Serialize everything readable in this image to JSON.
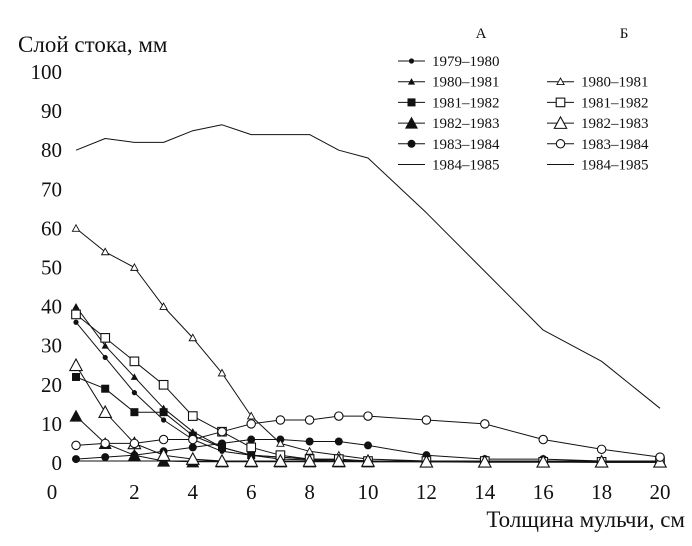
{
  "chart_data": {
    "type": "line",
    "title": "",
    "ylabel": "Слой стока, мм",
    "xlabel": "Толщина мульчи, см",
    "xlim": [
      0,
      20
    ],
    "ylim": [
      0,
      100
    ],
    "x_ticks": [
      0,
      2,
      4,
      6,
      8,
      10,
      12,
      14,
      16,
      18,
      20
    ],
    "y_ticks": [
      0,
      10,
      20,
      30,
      40,
      50,
      60,
      70,
      80,
      90,
      100
    ],
    "grid": false,
    "legend": {
      "placement": "top-right",
      "groups": [
        {
          "header": "А",
          "entries": [
            {
              "label": "1979–1980",
              "marker": "small-dot"
            },
            {
              "label": "1980–1981",
              "marker": "triangle-filled"
            },
            {
              "label": "1981–1982",
              "marker": "square-filled"
            },
            {
              "label": "1982–1983",
              "marker": "triangle-filled-large"
            },
            {
              "label": "1983–1984",
              "marker": "circle-filled"
            },
            {
              "label": "1984–1985",
              "marker": "none"
            }
          ]
        },
        {
          "header": "Б",
          "entries": [
            {
              "label": "1980–1981",
              "marker": "triangle-open"
            },
            {
              "label": "1981–1982",
              "marker": "square-open"
            },
            {
              "label": "1982–1983",
              "marker": "triangle-open-large"
            },
            {
              "label": "1983–1984",
              "marker": "circle-open"
            },
            {
              "label": "1984–1985",
              "marker": "none"
            }
          ]
        }
      ]
    },
    "series": [
      {
        "group": "А",
        "name": "1979–1980",
        "marker": "small-dot",
        "x": [
          0,
          1,
          2,
          3,
          4,
          5,
          6,
          7,
          8,
          9,
          10,
          12,
          14,
          16,
          18,
          20
        ],
        "y": [
          36,
          27,
          18,
          11,
          6,
          3,
          2,
          1.5,
          1,
          0.8,
          0.5,
          0.5,
          0.3,
          0.3,
          0.2,
          0.2
        ]
      },
      {
        "group": "А",
        "name": "1980–1981",
        "marker": "triangle-filled",
        "x": [
          0,
          1,
          2,
          3,
          4,
          5,
          6,
          7,
          8,
          9,
          10,
          12,
          14,
          16,
          18,
          20
        ],
        "y": [
          40,
          30,
          22,
          14,
          8,
          4,
          2,
          1.5,
          1,
          0.8,
          0.5,
          0.5,
          0.3,
          0.3,
          0.2,
          0.2
        ]
      },
      {
        "group": "А",
        "name": "1981–1982",
        "marker": "square-filled",
        "x": [
          0,
          1,
          2,
          3,
          4,
          5,
          6,
          7,
          8,
          9,
          10,
          12,
          14,
          16,
          18,
          20
        ],
        "y": [
          22,
          19,
          13,
          13,
          7,
          4,
          2,
          1,
          0.8,
          0.5,
          0.3,
          0.3,
          0.2,
          0.2,
          0.2,
          0.2
        ]
      },
      {
        "group": "А",
        "name": "1982–1983",
        "marker": "triangle-filled-large",
        "x": [
          0,
          1,
          2,
          3,
          4,
          5,
          6,
          7,
          8,
          9,
          10,
          12,
          14,
          16,
          18,
          20
        ],
        "y": [
          12,
          5,
          2,
          0.5,
          0.3,
          0.3,
          0.3,
          0.3,
          0.3,
          0.3,
          0.3,
          0.3,
          0.3,
          0.3,
          0.3,
          0.3
        ]
      },
      {
        "group": "А",
        "name": "1983–1984",
        "marker": "circle-filled",
        "x": [
          0,
          1,
          2,
          3,
          4,
          5,
          6,
          7,
          8,
          9,
          10,
          12,
          14,
          16,
          18,
          20
        ],
        "y": [
          1,
          1.5,
          2,
          3,
          4,
          5,
          6,
          6,
          5.5,
          5.5,
          4.5,
          2,
          1,
          1,
          0.5,
          0.5
        ]
      },
      {
        "group": "А",
        "name": "1984–1985",
        "marker": "none",
        "x": [
          0,
          2,
          4,
          6,
          8,
          10,
          12,
          14,
          16,
          18,
          20
        ],
        "y": [
          0.5,
          0.5,
          0.5,
          0.5,
          0.5,
          0.5,
          0.5,
          0.5,
          0.5,
          0.5,
          0.5
        ]
      },
      {
        "group": "Б",
        "name": "1980–1981",
        "marker": "triangle-open",
        "x": [
          0,
          1,
          2,
          3,
          4,
          5,
          6,
          7,
          8,
          9,
          10,
          12,
          14,
          16,
          18,
          20
        ],
        "y": [
          60,
          54,
          50,
          40,
          32,
          23,
          12,
          5,
          3,
          2,
          1,
          0.5,
          0.5,
          0.5,
          0.3,
          0.3
        ]
      },
      {
        "group": "Б",
        "name": "1981–1982",
        "marker": "square-open",
        "x": [
          0,
          1,
          2,
          3,
          4,
          5,
          6,
          7,
          8,
          9,
          10,
          12,
          14,
          16,
          18,
          20
        ],
        "y": [
          38,
          32,
          26,
          20,
          12,
          8,
          4,
          2,
          1,
          1,
          0.5,
          0.5,
          0.5,
          0.3,
          0.3,
          0.3
        ]
      },
      {
        "group": "Б",
        "name": "1982–1983",
        "marker": "triangle-open-large",
        "x": [
          0,
          1,
          2,
          3,
          4,
          5,
          6,
          7,
          8,
          9,
          10,
          12,
          14,
          16,
          18,
          20
        ],
        "y": [
          25,
          13,
          5,
          2,
          1,
          0.5,
          0.5,
          0.5,
          0.5,
          0.5,
          0.5,
          0.3,
          0.3,
          0.3,
          0.3,
          0.3
        ]
      },
      {
        "group": "Б",
        "name": "1983–1984",
        "marker": "circle-open",
        "x": [
          0,
          1,
          2,
          3,
          4,
          5,
          6,
          7,
          8,
          9,
          10,
          12,
          14,
          16,
          18,
          20
        ],
        "y": [
          4.5,
          5,
          5,
          6,
          6,
          8,
          10,
          11,
          11,
          12,
          12,
          11,
          10,
          6,
          3.5,
          1.5
        ]
      },
      {
        "group": "Б",
        "name": "1984–1985",
        "marker": "none",
        "x": [
          0,
          1,
          2,
          3,
          4,
          5,
          6,
          7,
          8,
          9,
          10,
          12,
          14,
          16,
          18,
          20
        ],
        "y": [
          80,
          83,
          82,
          82,
          85,
          86.5,
          84,
          84,
          84,
          80,
          78,
          64,
          49,
          34,
          26,
          14
        ]
      }
    ]
  }
}
